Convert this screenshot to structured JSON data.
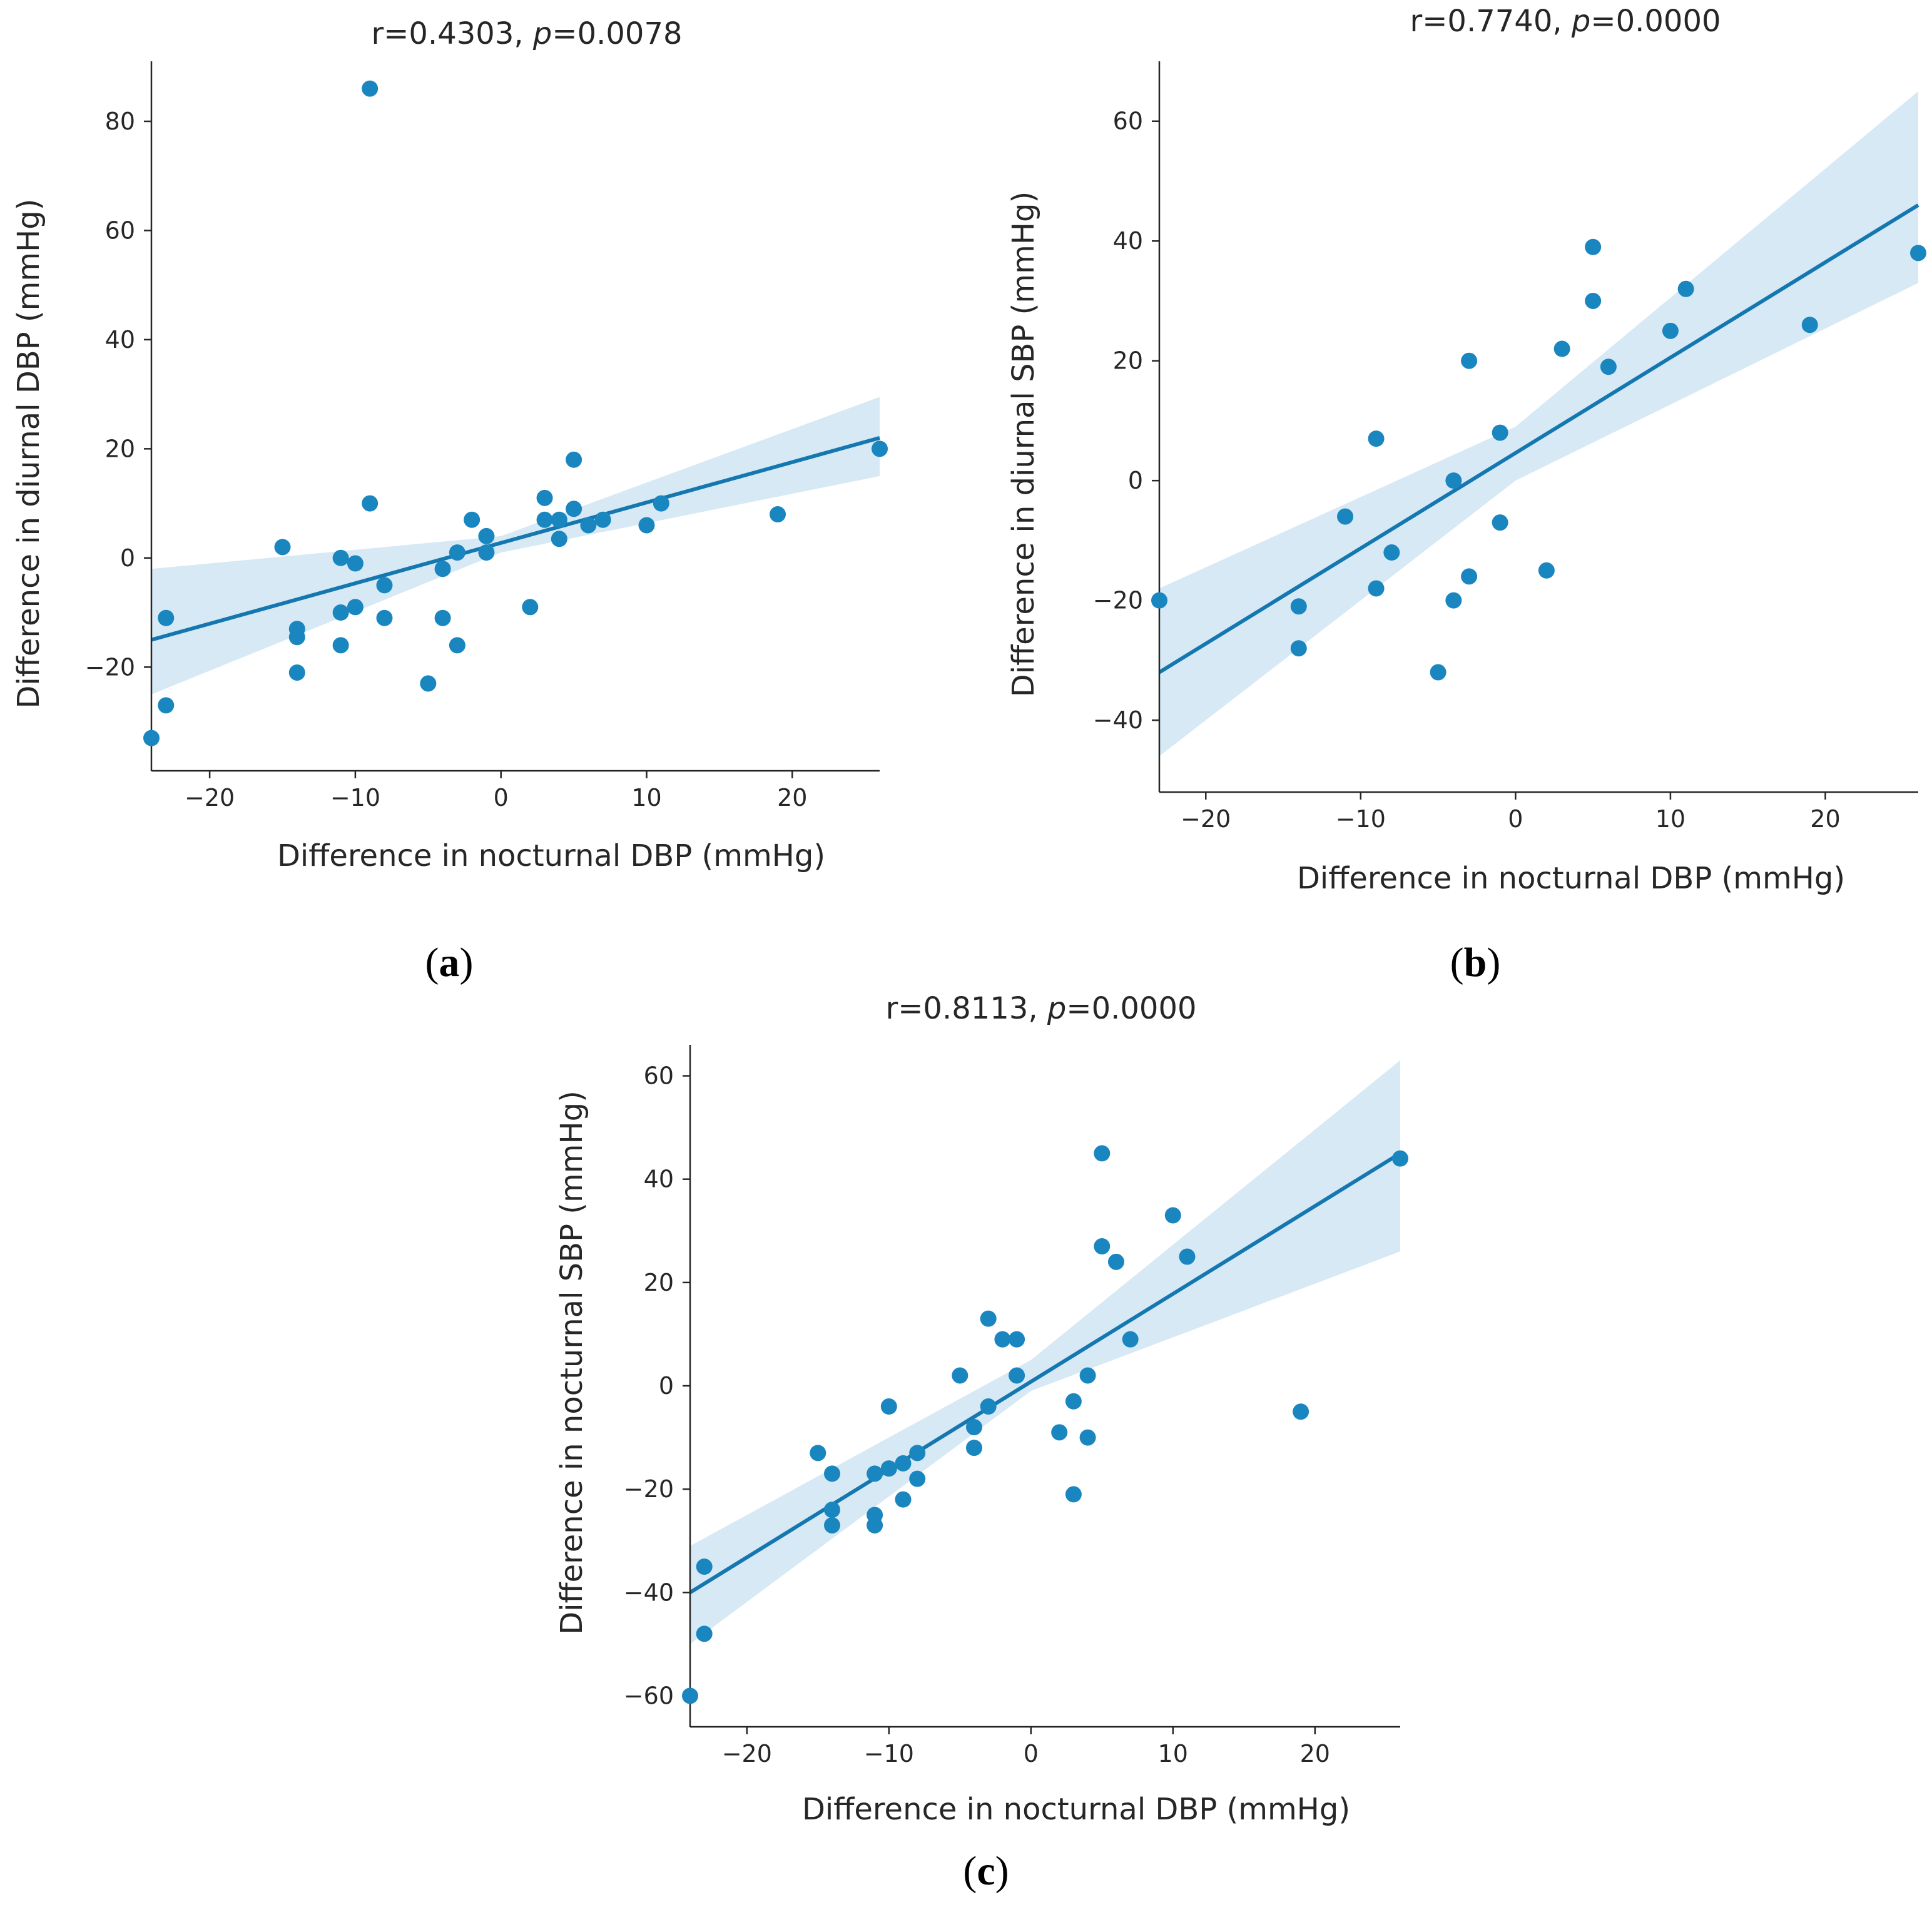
{
  "colors": {
    "point": "#1a86c0",
    "line": "#1577b0",
    "band": "#c5dff0",
    "axis": "#262626"
  },
  "chart_data": [
    {
      "id": "a",
      "type": "scatter",
      "panel_letter": "a",
      "title_prefix": "r=0.4303, ",
      "title_p": "p",
      "title_suffix": "=0.0078",
      "xlabel": "Difference in nocturnal DBP (mmHg)",
      "ylabel": "Difference in diurnal DBP (mmHg)",
      "xlim": [
        -24,
        26
      ],
      "ylim": [
        -39,
        91
      ],
      "xticks": [
        -20,
        -10,
        0,
        10,
        20
      ],
      "yticks": [
        -20,
        0,
        20,
        40,
        60,
        80
      ],
      "regression": {
        "x0": -24,
        "y0": -15,
        "x1": 26,
        "y1": 22
      },
      "ci": {
        "lower": [
          -25,
          1,
          15
        ],
        "upper": [
          -2,
          4,
          29.5
        ]
      },
      "x": [
        -24,
        -23,
        -23,
        -15,
        -14,
        -14,
        -14,
        -11,
        -11,
        -11,
        -10,
        -10,
        -9,
        -9,
        -8,
        -8,
        -5,
        -4,
        -4,
        -3,
        -3,
        -2,
        -1,
        -1,
        2,
        3,
        3,
        4,
        4,
        5,
        5,
        6,
        7,
        10,
        11,
        19,
        26
      ],
      "y": [
        -33,
        -27,
        -11,
        2,
        -13,
        -14.5,
        -21,
        0,
        -10,
        -16,
        -1,
        -9,
        86,
        10,
        -5,
        -11,
        -23,
        -2,
        -11,
        1,
        -16,
        7,
        4,
        1,
        -9,
        11,
        7,
        7,
        3.5,
        18,
        9,
        6,
        7,
        6,
        10,
        8,
        20
      ]
    },
    {
      "id": "b",
      "type": "scatter",
      "panel_letter": "b",
      "title_prefix": "r=0.7740, ",
      "title_p": "p",
      "title_suffix": "=0.0000",
      "xlabel": "Difference in nocturnal DBP (mmHg)",
      "ylabel": "Difference in diurnal SBP (mmHg)",
      "xlim": [
        -23,
        26
      ],
      "ylim": [
        -52,
        70
      ],
      "xticks": [
        -20,
        -10,
        0,
        10,
        20
      ],
      "yticks": [
        -40,
        -20,
        0,
        20,
        40,
        60
      ],
      "regression": {
        "x0": -23,
        "y0": -32,
        "x1": 26,
        "y1": 46
      },
      "ci": {
        "lower": [
          -46,
          0,
          33
        ],
        "upper": [
          -18,
          9,
          65
        ]
      },
      "x": [
        -23,
        -14,
        -14,
        -11,
        -9,
        -9,
        -8,
        -5,
        -4,
        -4,
        -3,
        -3,
        -1,
        -1,
        2,
        3,
        5,
        5,
        6,
        10,
        11,
        19,
        26
      ],
      "y": [
        -20,
        -21,
        -28,
        -6,
        7,
        -18,
        -12,
        -32,
        0,
        -20,
        20,
        -16,
        8,
        -7,
        -15,
        22,
        39,
        30,
        19,
        25,
        32,
        26,
        38
      ]
    },
    {
      "id": "c",
      "type": "scatter",
      "panel_letter": "c",
      "title_prefix": "r=0.8113, ",
      "title_p": "p",
      "title_suffix": "=0.0000",
      "xlabel": "Difference in nocturnal DBP (mmHg)",
      "ylabel": "Difference in nocturnal SBP (mmHg)",
      "xlim": [
        -24,
        26
      ],
      "ylim": [
        -66,
        66
      ],
      "xticks": [
        -20,
        -10,
        0,
        10,
        20
      ],
      "yticks": [
        -60,
        -40,
        -20,
        0,
        20,
        40,
        60
      ],
      "regression": {
        "x0": -24,
        "y0": -40,
        "x1": 26,
        "y1": 45
      },
      "ci": {
        "lower": [
          -50,
          -1,
          26
        ],
        "upper": [
          -31,
          5,
          63
        ]
      },
      "x": [
        -24,
        -23,
        -23,
        -15,
        -14,
        -14,
        -14,
        -11,
        -11,
        -11,
        -10,
        -10,
        -9,
        -9,
        -8,
        -8,
        -5,
        -4,
        -4,
        -3,
        -3,
        -2,
        -1,
        -1,
        2,
        3,
        3,
        4,
        4,
        5,
        5,
        6,
        7,
        10,
        11,
        19,
        26
      ],
      "y": [
        -60,
        -48,
        -35,
        -13,
        -17,
        -24,
        -27,
        -17,
        -25,
        -27,
        -16,
        -4,
        -15,
        -22,
        -13,
        -18,
        2,
        -8,
        -12,
        13,
        -4,
        9,
        9,
        2,
        -9,
        -3,
        -21,
        2,
        -10,
        45,
        27,
        24,
        9,
        33,
        25,
        -5,
        44
      ]
    }
  ]
}
